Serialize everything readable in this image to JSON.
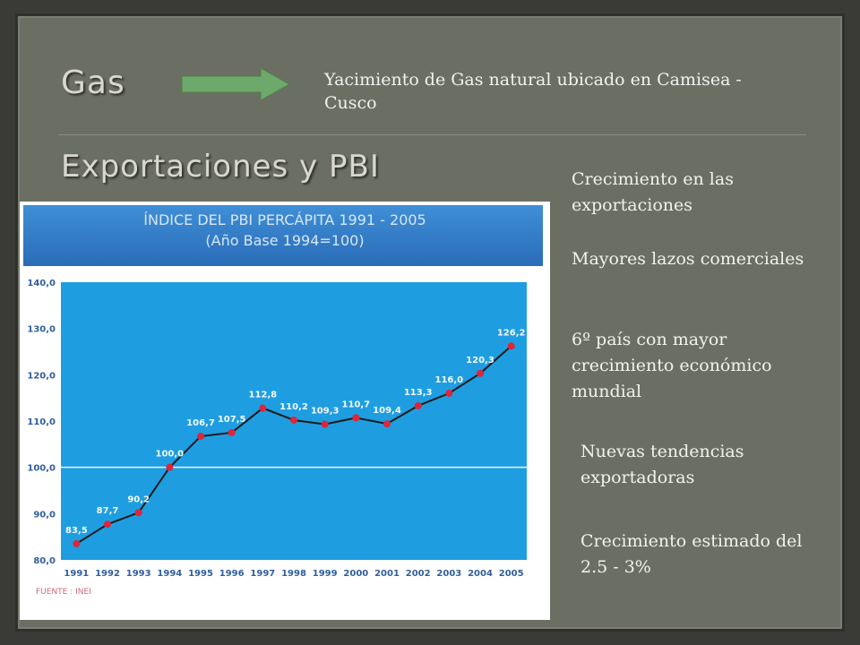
{
  "slide": {
    "title_gas": "Gas",
    "gas_description": "Yacimiento de Gas natural ubicado en Camisea - Cusco",
    "title_exports": "Exportaciones y PBI",
    "bullets": [
      "Crecimiento en las exportaciones",
      "Mayores lazos comerciales",
      "6º país con mayor crecimiento económico mundial",
      "Nuevas tendencias exportadoras",
      "Crecimiento estimado del 2.5 - 3%"
    ],
    "colors": {
      "background": "#6b6f63",
      "arrow": "#6ea86a",
      "chart_plot_bg": "#1e9ee0",
      "chart_header_bg": "#2e7cc8",
      "chart_line": "#1a1a1a",
      "chart_marker": "#e0243a"
    },
    "icons": {
      "arrow": "right-arrow-icon"
    }
  },
  "chart_data": {
    "type": "line",
    "title": "ÍNDICE DEL PBI PERCÁPITA  1991 - 2005",
    "subtitle": "(Año Base 1994=100)",
    "source": "FUENTE : INEI",
    "categories": [
      "1991",
      "1992",
      "1993",
      "1994",
      "1995",
      "1996",
      "1997",
      "1998",
      "1999",
      "2000",
      "2001",
      "2002",
      "2003",
      "2004",
      "2005"
    ],
    "values": [
      83.5,
      87.7,
      90.2,
      100.0,
      106.7,
      107.5,
      112.8,
      110.2,
      109.3,
      110.7,
      109.4,
      113.3,
      116.0,
      120.3,
      126.2
    ],
    "value_labels": [
      "83,5",
      "87,7",
      "90,2",
      "100,0",
      "106,7",
      "107,5",
      "112,8",
      "110,2",
      "109,3",
      "110,7",
      "109,4",
      "113,3",
      "116,0",
      "120,3",
      "126,2"
    ],
    "y_ticks": [
      "80,0",
      "90,0",
      "100,0",
      "110,0",
      "120,0",
      "130,0",
      "140,0"
    ],
    "ylim": [
      80,
      140
    ],
    "reference_line": 100,
    "grid": false,
    "legend": "none"
  }
}
